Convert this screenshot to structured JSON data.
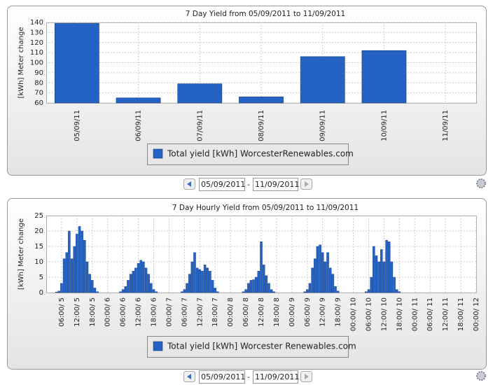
{
  "chart_data": [
    {
      "type": "bar",
      "title": "7 Day Yield from 05/09/2011 to 11/09/2011",
      "y_label": "[kWh] Meter change",
      "categories": [
        "05/09/11",
        "06/09/11",
        "07/09/11",
        "08/09/11",
        "09/09/11",
        "10/09/11",
        "11/09/11"
      ],
      "series": [
        {
          "name": "Total yield [kWh] WorcesterRenewables.com",
          "color": "#2462c4",
          "values": [
            139,
            65,
            79,
            66,
            106,
            112,
            null
          ]
        }
      ],
      "ylim": [
        60,
        140
      ],
      "yticks": [
        60,
        70,
        80,
        90,
        100,
        110,
        120,
        130,
        140
      ],
      "grid": true
    },
    {
      "type": "bar",
      "title": "7 Day Hourly Yield from 05/09/2011 to 11/09/2011",
      "y_label": "[kWh] Meter change",
      "x": [
        4,
        5,
        6,
        7,
        8,
        9,
        10,
        11,
        12,
        13,
        14,
        15,
        16,
        17,
        18,
        19,
        20,
        29,
        30,
        31,
        32,
        33,
        34,
        35,
        36,
        37,
        38,
        39,
        40,
        41,
        42,
        43,
        53,
        54,
        55,
        56,
        57,
        58,
        59,
        60,
        61,
        62,
        63,
        64,
        65,
        66,
        67,
        77,
        78,
        79,
        80,
        81,
        82,
        83,
        84,
        85,
        86,
        87,
        88,
        89,
        101,
        102,
        103,
        104,
        105,
        106,
        107,
        108,
        109,
        110,
        111,
        112,
        113,
        114,
        125,
        126,
        127,
        128,
        129,
        130,
        131,
        132,
        133,
        134,
        135,
        136,
        137,
        138
      ],
      "series": [
        {
          "name": "Total yield [kWh] Worcester Renewables.com",
          "color": "#2462c4",
          "values": [
            0.2,
            0.5,
            3,
            11,
            13,
            20,
            11,
            15,
            19,
            21.5,
            20,
            17,
            10,
            6,
            4,
            1.5,
            0.3,
            0.3,
            1,
            2,
            4,
            6,
            7,
            8,
            9.5,
            10.5,
            10,
            8,
            6,
            3,
            1,
            0.3,
            0.3,
            1,
            3,
            6,
            10,
            13,
            8,
            7.5,
            7,
            9,
            8,
            7,
            4,
            1.5,
            0.3,
            0.3,
            1,
            3,
            4,
            4.2,
            5,
            7,
            16.5,
            9,
            5.5,
            3,
            1,
            0.3,
            0.3,
            1,
            3,
            8,
            11,
            15,
            15.5,
            13,
            10,
            13,
            8,
            6,
            2,
            0.5,
            0.3,
            1,
            5,
            15,
            12,
            10,
            14,
            10,
            17,
            16.5,
            10,
            5,
            1,
            0.3
          ]
        }
      ],
      "xlim": [
        0,
        168
      ],
      "xticks": [
        {
          "value": 6,
          "label": "06:00/ 5"
        },
        {
          "value": 12,
          "label": "12:00/ 5"
        },
        {
          "value": 18,
          "label": "18:00/ 5"
        },
        {
          "value": 24,
          "label": "00:00/ 6"
        },
        {
          "value": 30,
          "label": "06:00/ 6"
        },
        {
          "value": 36,
          "label": "12:00/ 6"
        },
        {
          "value": 42,
          "label": "18:00/ 6"
        },
        {
          "value": 48,
          "label": "00:00/ 7"
        },
        {
          "value": 54,
          "label": "06:00/ 7"
        },
        {
          "value": 60,
          "label": "12:00/ 7"
        },
        {
          "value": 66,
          "label": "18:00/ 7"
        },
        {
          "value": 72,
          "label": "00:00/ 8"
        },
        {
          "value": 78,
          "label": "06:00/ 8"
        },
        {
          "value": 84,
          "label": "12:00/ 8"
        },
        {
          "value": 90,
          "label": "18:00/ 8"
        },
        {
          "value": 96,
          "label": "00:00/ 9"
        },
        {
          "value": 102,
          "label": "06:00/ 9"
        },
        {
          "value": 108,
          "label": "12:00/ 9"
        },
        {
          "value": 114,
          "label": "18:00/ 9"
        },
        {
          "value": 120,
          "label": "00:00/ 10"
        },
        {
          "value": 126,
          "label": "06:00/ 10"
        },
        {
          "value": 132,
          "label": "12:00/ 10"
        },
        {
          "value": 138,
          "label": "18:00/ 10"
        },
        {
          "value": 144,
          "label": "00:00/ 11"
        },
        {
          "value": 150,
          "label": "06:00/ 11"
        },
        {
          "value": 156,
          "label": "12:00/ 11"
        },
        {
          "value": 162,
          "label": "18:00/ 11"
        },
        {
          "value": 168,
          "label": "00:00/ 12"
        }
      ],
      "ylim": [
        0,
        25
      ],
      "yticks": [
        0,
        5,
        10,
        15,
        20,
        25
      ],
      "grid": true
    }
  ],
  "date_ranges": [
    {
      "from": "05/09/2011",
      "to": "11/09/2011"
    },
    {
      "from": "05/09/2011",
      "to": "11/09/2011"
    }
  ],
  "separator": "-"
}
